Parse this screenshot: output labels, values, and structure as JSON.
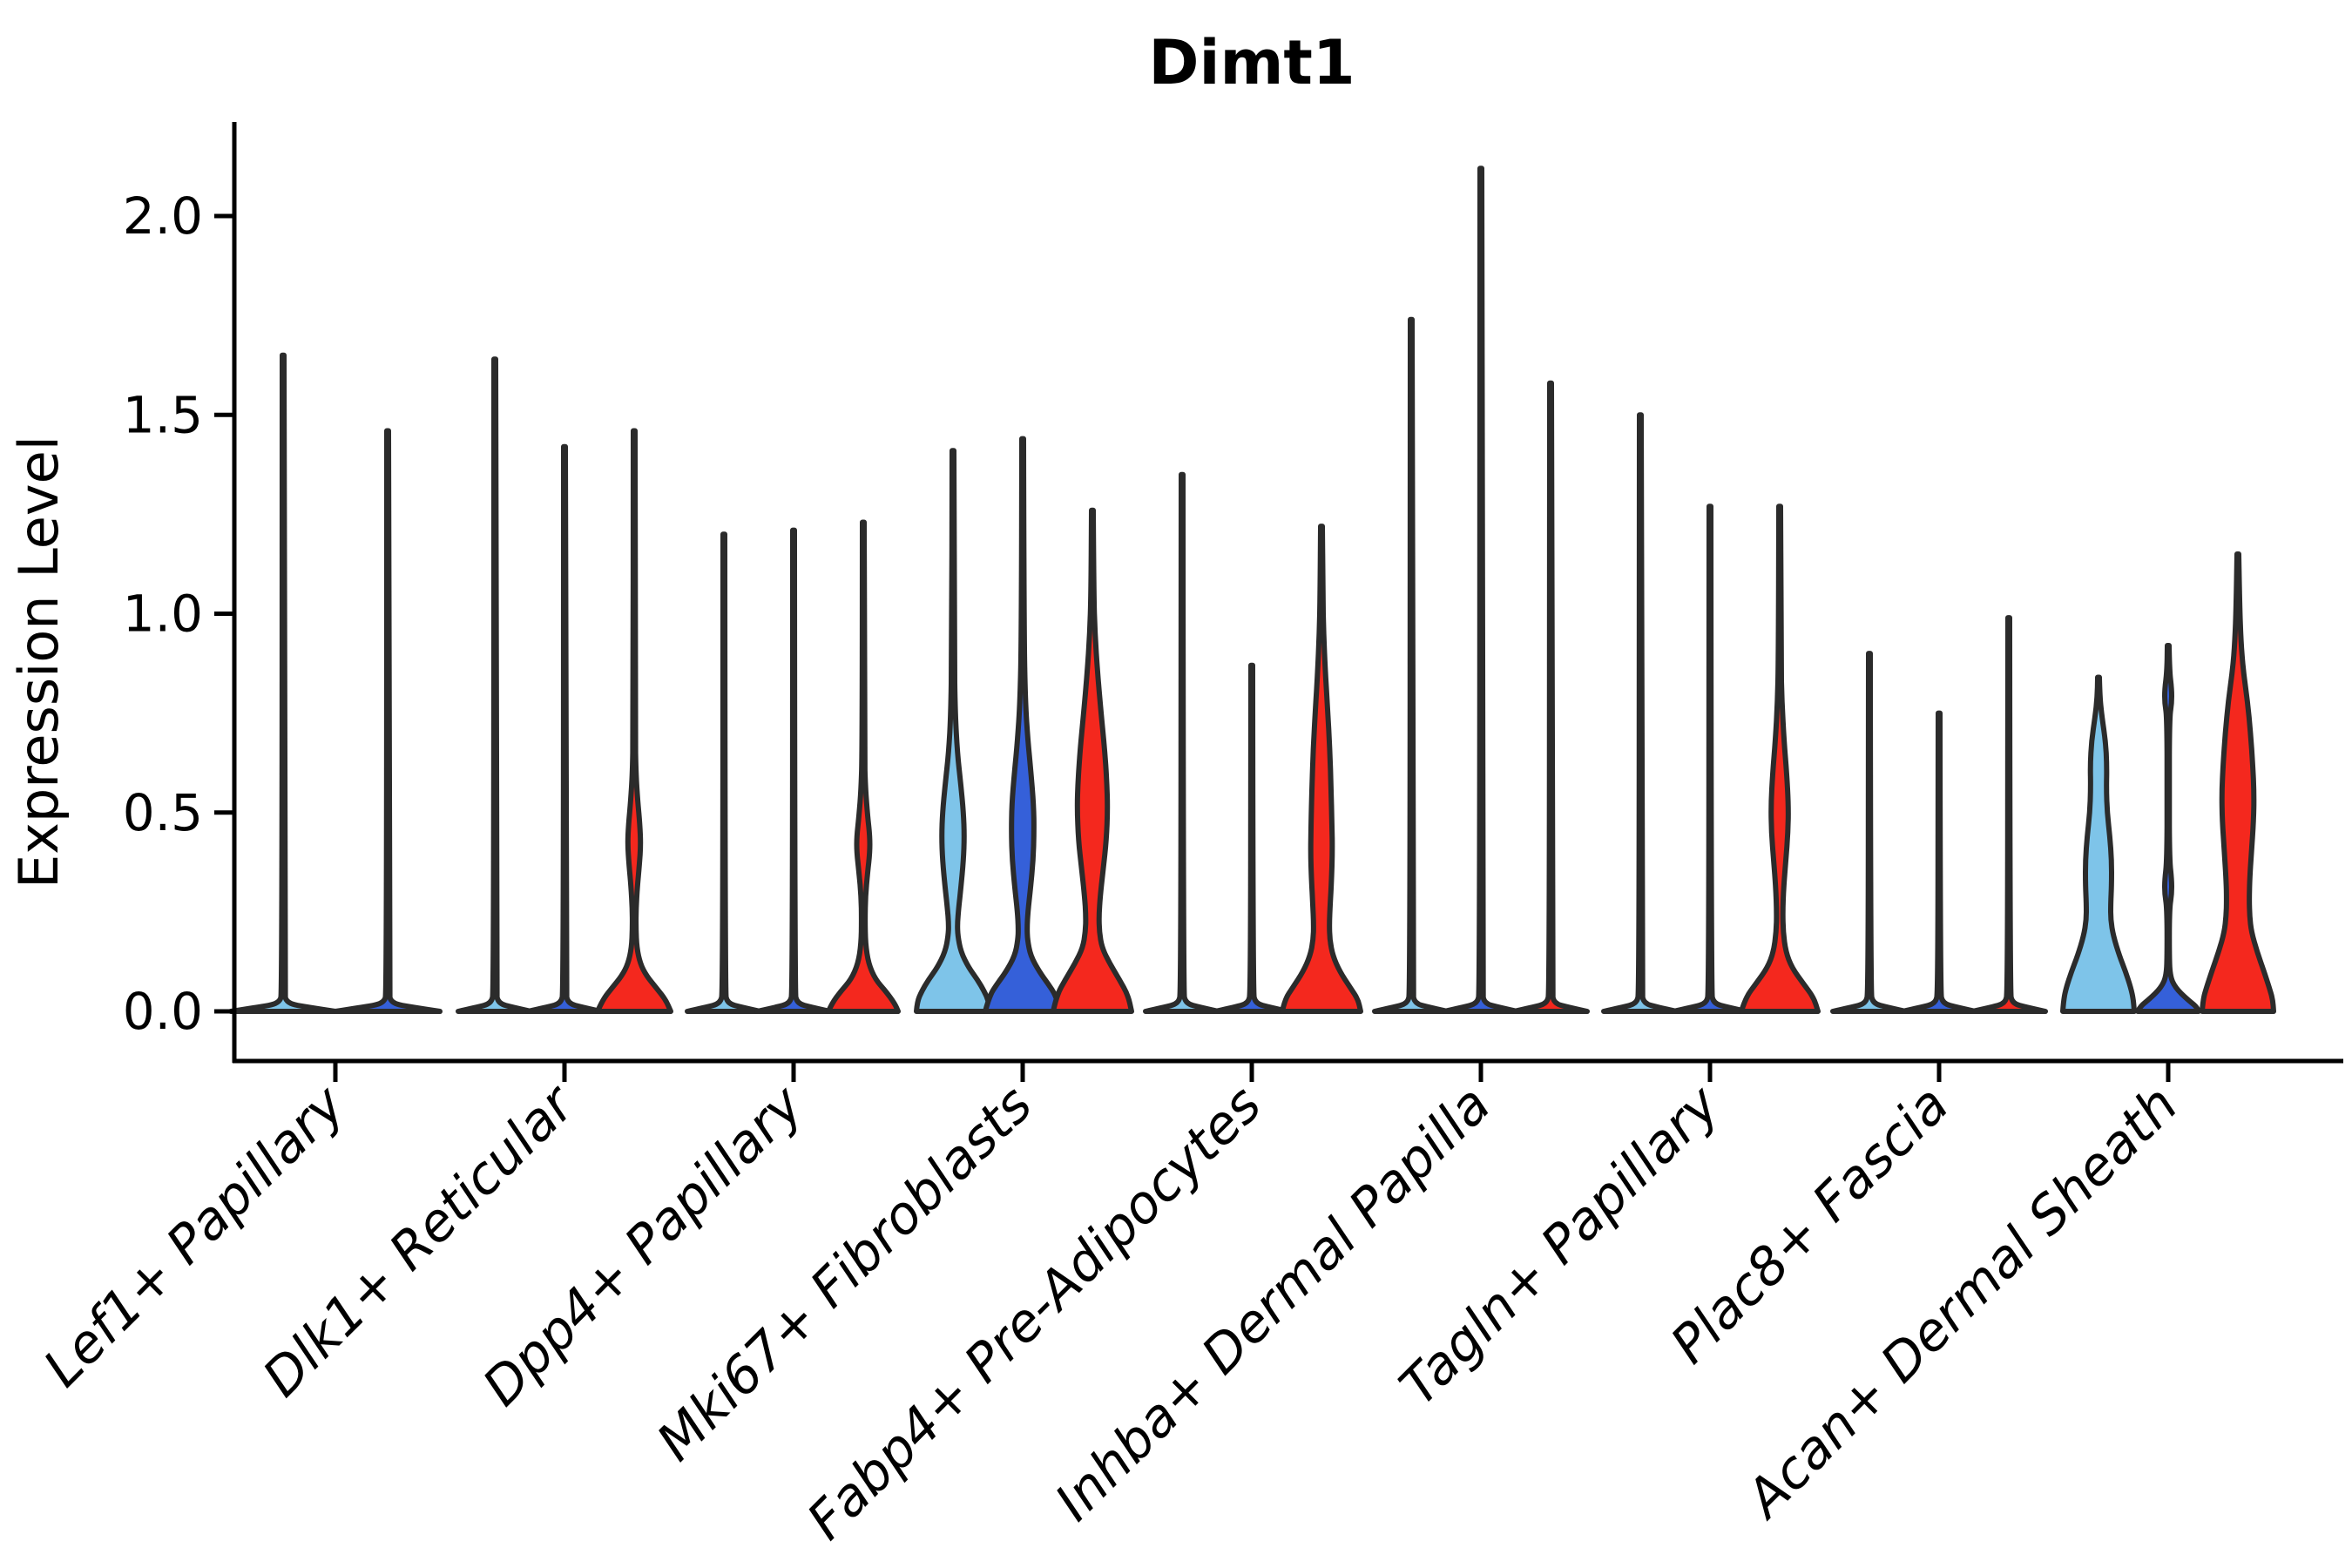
{
  "figure": {
    "background": "#ffffff"
  },
  "chart_data": {
    "type": "violin",
    "title": "Dimt1",
    "ylabel": "Expression Level",
    "xlabel": "",
    "yticks": [
      "0.0",
      "0.5",
      "1.0",
      "1.5",
      "2.0"
    ],
    "ytick_values": [
      0.0,
      0.5,
      1.0,
      1.5,
      2.0
    ],
    "ylim": [
      -0.125,
      2.23
    ],
    "grid": false,
    "legend": "none",
    "outline_color": "#2B2B2B",
    "palette": {
      "light_blue": "#7EC4E9",
      "dark_blue": "#3560D9",
      "red": "#F4281E"
    },
    "categories": [
      "Lef1+ Papillary",
      "Dlk1+ Reticular",
      "Dpp4+ Papillary",
      "Mki67+ Fibroblasts",
      "Fabp4+ Pre-Adipocytes",
      "Inhba+ Dermal Papilla",
      "Tagln+ Papillary",
      "Plac8+ Fascia",
      "Acan+ Dermal Sheath"
    ],
    "groups": [
      {
        "category": "Lef1+ Papillary",
        "violins": [
          {
            "color": "light_blue",
            "max": 1.65,
            "dx": -60,
            "hw0": 60,
            "shape": "spike"
          },
          {
            "color": "dark_blue",
            "max": 1.46,
            "dx": 60,
            "hw0": 60,
            "shape": "spike"
          }
        ]
      },
      {
        "category": "Dlk1+ Reticular",
        "violins": [
          {
            "color": "light_blue",
            "max": 1.64,
            "dx": -80,
            "hw0": 42,
            "shape": "spike"
          },
          {
            "color": "dark_blue",
            "max": 1.42,
            "dx": 0,
            "hw0": 42,
            "shape": "spike"
          },
          {
            "color": "red",
            "max": 1.46,
            "dx": 80,
            "hw0": 42,
            "shape": "body",
            "profile": [
              [
                1.46,
                1
              ],
              [
                0.7,
                1.3
              ],
              [
                0.6,
                2
              ],
              [
                0.53,
                4
              ],
              [
                0.47,
                6.5
              ],
              [
                0.42,
                7.5
              ],
              [
                0.37,
                6
              ],
              [
                0.31,
                3.5
              ],
              [
                0.26,
                2.2
              ],
              [
                0.21,
                2
              ],
              [
                0.16,
                3
              ],
              [
                0.12,
                7
              ],
              [
                0.09,
                14
              ],
              [
                0.06,
                25
              ],
              [
                0.03,
                36
              ],
              [
                0,
                42
              ]
            ]
          }
        ]
      },
      {
        "category": "Dpp4+ Papillary",
        "violins": [
          {
            "color": "light_blue",
            "max": 1.2,
            "dx": -80,
            "hw0": 42,
            "shape": "spike"
          },
          {
            "color": "dark_blue",
            "max": 1.21,
            "dx": 0,
            "hw0": 42,
            "shape": "spike"
          },
          {
            "color": "red",
            "max": 1.23,
            "dx": 80,
            "hw0": 40,
            "shape": "body",
            "profile": [
              [
                1.23,
                1
              ],
              [
                0.65,
                1.3
              ],
              [
                0.56,
                2.5
              ],
              [
                0.49,
                5
              ],
              [
                0.44,
                7.5
              ],
              [
                0.4,
                7.5
              ],
              [
                0.35,
                5
              ],
              [
                0.29,
                2.5
              ],
              [
                0.23,
                2
              ],
              [
                0.17,
                2.5
              ],
              [
                0.12,
                6
              ],
              [
                0.08,
                14
              ],
              [
                0.05,
                26
              ],
              [
                0.02,
                36
              ],
              [
                0,
                40
              ]
            ]
          }
        ]
      },
      {
        "category": "Mki67+ Fibroblasts",
        "violins": [
          {
            "color": "light_blue",
            "max": 1.41,
            "dx": -80,
            "hw0": 42,
            "shape": "body",
            "profile": [
              [
                1.41,
                1
              ],
              [
                0.9,
                1.5
              ],
              [
                0.75,
                2.5
              ],
              [
                0.65,
                5
              ],
              [
                0.57,
                9
              ],
              [
                0.5,
                12
              ],
              [
                0.44,
                13
              ],
              [
                0.38,
                12
              ],
              [
                0.31,
                9
              ],
              [
                0.26,
                6.5
              ],
              [
                0.22,
                5
              ],
              [
                0.19,
                5.5
              ],
              [
                0.15,
                9
              ],
              [
                0.11,
                18
              ],
              [
                0.08,
                28
              ],
              [
                0.05,
                36
              ],
              [
                0.025,
                41
              ],
              [
                0,
                42
              ]
            ]
          },
          {
            "color": "dark_blue",
            "max": 1.44,
            "dx": 0,
            "hw0": 43,
            "shape": "body",
            "profile": [
              [
                1.44,
                1
              ],
              [
                0.95,
                1.5
              ],
              [
                0.78,
                3
              ],
              [
                0.68,
                6
              ],
              [
                0.6,
                9.5
              ],
              [
                0.52,
                12.5
              ],
              [
                0.45,
                13
              ],
              [
                0.38,
                12
              ],
              [
                0.31,
                9
              ],
              [
                0.25,
                6
              ],
              [
                0.21,
                5
              ],
              [
                0.18,
                5.5
              ],
              [
                0.14,
                9
              ],
              [
                0.1,
                19
              ],
              [
                0.07,
                29
              ],
              [
                0.04,
                38
              ],
              [
                0,
                43
              ]
            ]
          },
          {
            "color": "red",
            "max": 1.26,
            "dx": 80,
            "hw0": 45,
            "shape": "body",
            "profile": [
              [
                1.26,
                1
              ],
              [
                1.05,
                1.6
              ],
              [
                0.95,
                3
              ],
              [
                0.85,
                6
              ],
              [
                0.75,
                10
              ],
              [
                0.66,
                14
              ],
              [
                0.58,
                16.5
              ],
              [
                0.51,
                17.5
              ],
              [
                0.43,
                16
              ],
              [
                0.36,
                12.5
              ],
              [
                0.29,
                9
              ],
              [
                0.24,
                7.5
              ],
              [
                0.2,
                8
              ],
              [
                0.16,
                11
              ],
              [
                0.12,
                20
              ],
              [
                0.08,
                31
              ],
              [
                0.04,
                41
              ],
              [
                0,
                45
              ]
            ]
          }
        ]
      },
      {
        "category": "Fabp4+ Pre-Adipocytes",
        "violins": [
          {
            "color": "light_blue",
            "max": 1.35,
            "dx": -80,
            "hw0": 42,
            "shape": "spike"
          },
          {
            "color": "dark_blue",
            "max": 0.87,
            "dx": 0,
            "hw0": 42,
            "shape": "spike"
          },
          {
            "color": "red",
            "max": 1.22,
            "dx": 80,
            "hw0": 45,
            "shape": "body",
            "profile": [
              [
                1.22,
                1
              ],
              [
                1.05,
                1.6
              ],
              [
                0.95,
                2.5
              ],
              [
                0.85,
                4.5
              ],
              [
                0.76,
                7
              ],
              [
                0.66,
                9.5
              ],
              [
                0.56,
                11
              ],
              [
                0.47,
                12
              ],
              [
                0.4,
                12.5
              ],
              [
                0.33,
                11.5
              ],
              [
                0.27,
                10
              ],
              [
                0.22,
                9
              ],
              [
                0.18,
                9.5
              ],
              [
                0.14,
                13
              ],
              [
                0.1,
                21
              ],
              [
                0.06,
                33
              ],
              [
                0.03,
                42
              ],
              [
                0,
                45
              ]
            ]
          }
        ]
      },
      {
        "category": "Inhba+ Dermal Papilla",
        "violins": [
          {
            "color": "light_blue",
            "max": 1.74,
            "dx": -80,
            "hw0": 42,
            "shape": "spike"
          },
          {
            "color": "dark_blue",
            "max": 2.12,
            "dx": 0,
            "hw0": 42,
            "shape": "spike"
          },
          {
            "color": "red",
            "max": 1.58,
            "dx": 80,
            "hw0": 42,
            "shape": "spike"
          }
        ]
      },
      {
        "category": "Tagln+ Papillary",
        "violins": [
          {
            "color": "light_blue",
            "max": 1.5,
            "dx": -80,
            "hw0": 42,
            "shape": "spike"
          },
          {
            "color": "dark_blue",
            "max": 1.27,
            "dx": 0,
            "hw0": 42,
            "shape": "spike"
          },
          {
            "color": "red",
            "max": 1.27,
            "dx": 80,
            "hw0": 44,
            "shape": "body",
            "profile": [
              [
                1.27,
                1
              ],
              [
                0.88,
                1.5
              ],
              [
                0.78,
                2.5
              ],
              [
                0.68,
                5
              ],
              [
                0.6,
                8
              ],
              [
                0.52,
                10
              ],
              [
                0.45,
                9.5
              ],
              [
                0.38,
                7
              ],
              [
                0.31,
                4.5
              ],
              [
                0.25,
                3.5
              ],
              [
                0.2,
                4
              ],
              [
                0.15,
                7
              ],
              [
                0.11,
                14
              ],
              [
                0.07,
                27
              ],
              [
                0.035,
                39
              ],
              [
                0,
                44
              ]
            ]
          }
        ]
      },
      {
        "category": "Plac8+ Fascia",
        "violins": [
          {
            "color": "light_blue",
            "max": 0.9,
            "dx": -80,
            "hw0": 42,
            "shape": "spike"
          },
          {
            "color": "dark_blue",
            "max": 0.75,
            "dx": 0,
            "hw0": 42,
            "shape": "spike"
          },
          {
            "color": "red",
            "max": 0.99,
            "dx": 80,
            "hw0": 42,
            "shape": "spike"
          }
        ]
      },
      {
        "category": "Acan+ Dermal Sheath",
        "violins": [
          {
            "color": "light_blue",
            "max": 0.84,
            "dx": -80,
            "hw0": 41,
            "shape": "body",
            "profile": [
              [
                0.84,
                1
              ],
              [
                0.79,
                1.5
              ],
              [
                0.74,
                4
              ],
              [
                0.68,
                8
              ],
              [
                0.62,
                9.5
              ],
              [
                0.56,
                9
              ],
              [
                0.5,
                10
              ],
              [
                0.44,
                13
              ],
              [
                0.38,
                15
              ],
              [
                0.32,
                15
              ],
              [
                0.27,
                14
              ],
              [
                0.23,
                14
              ],
              [
                0.19,
                17
              ],
              [
                0.14,
                24
              ],
              [
                0.1,
                31
              ],
              [
                0.06,
                37
              ],
              [
                0.03,
                40
              ],
              [
                0,
                41
              ]
            ]
          },
          {
            "color": "dark_blue",
            "max": 0.92,
            "dx": 0,
            "hw0": 35,
            "shape": "body",
            "profile": [
              [
                0.92,
                1
              ],
              [
                0.855,
                1.5
              ],
              [
                0.81,
                4
              ],
              [
                0.775,
                4
              ],
              [
                0.74,
                1.5
              ],
              [
                0.55,
                1.2
              ],
              [
                0.38,
                1.5
              ],
              [
                0.33,
                4
              ],
              [
                0.295,
                4
              ],
              [
                0.26,
                1.5
              ],
              [
                0.15,
                1.2
              ],
              [
                0.09,
                2
              ],
              [
                0.06,
                8
              ],
              [
                0.03,
                22
              ],
              [
                0.013,
                32
              ],
              [
                0,
                35
              ]
            ]
          },
          {
            "color": "red",
            "max": 1.15,
            "dx": 80,
            "hw0": 41,
            "shape": "body",
            "profile": [
              [
                1.15,
                1
              ],
              [
                1.02,
                2
              ],
              [
                0.93,
                3.5
              ],
              [
                0.86,
                6
              ],
              [
                0.78,
                11
              ],
              [
                0.7,
                14.5
              ],
              [
                0.62,
                17
              ],
              [
                0.55,
                18.5
              ],
              [
                0.48,
                18
              ],
              [
                0.4,
                15.5
              ],
              [
                0.33,
                13.5
              ],
              [
                0.28,
                13
              ],
              [
                0.24,
                13.5
              ],
              [
                0.2,
                15.5
              ],
              [
                0.15,
                22
              ],
              [
                0.1,
                30
              ],
              [
                0.06,
                36
              ],
              [
                0.03,
                40
              ],
              [
                0,
                41
              ]
            ]
          }
        ]
      }
    ]
  }
}
